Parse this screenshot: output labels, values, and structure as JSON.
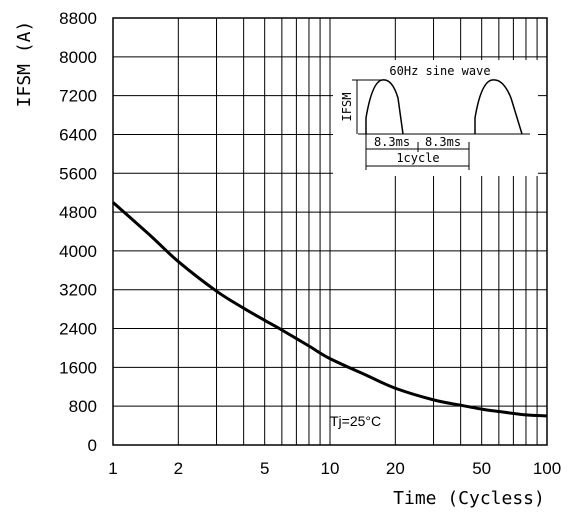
{
  "chart_data": {
    "type": "line",
    "title": "",
    "xlabel": "Time (Cycless)",
    "ylabel": "IFSM (A)",
    "xscale": "log",
    "xlim": [
      1,
      100
    ],
    "ylim": [
      0,
      8800
    ],
    "x_ticks": [
      1,
      2,
      5,
      10,
      20,
      50,
      100
    ],
    "x_tick_labels": [
      "1",
      "2",
      "5",
      "10",
      "20",
      "50",
      "100"
    ],
    "y_ticks": [
      0,
      800,
      1600,
      2400,
      3200,
      4000,
      4800,
      5600,
      6400,
      7200,
      8000,
      8800
    ],
    "y_tick_labels": [
      "0",
      "800",
      "1600",
      "2400",
      "3200",
      "4000",
      "4800",
      "5600",
      "6400",
      "7200",
      "8000",
      "8800"
    ],
    "grid": true,
    "series": [
      {
        "x": [
          1,
          1.5,
          2,
          3,
          4,
          5,
          6,
          8,
          10,
          15,
          20,
          30,
          40,
          50,
          60,
          80,
          100
        ],
        "y": [
          5000,
          4300,
          3780,
          3170,
          2820,
          2570,
          2370,
          2040,
          1780,
          1420,
          1170,
          930,
          820,
          740,
          690,
          620,
          600
        ]
      }
    ],
    "annotations": [
      "Tj=25°C"
    ],
    "inset": {
      "title": "60Hz sine wave",
      "amplitude_label": "IFSM",
      "half_period_labels": [
        "8.3ms",
        "8.3ms"
      ],
      "period_label": "1cycle"
    }
  },
  "colors": {
    "line": "#000000",
    "grid": "#000000",
    "background": "#ffffff"
  }
}
